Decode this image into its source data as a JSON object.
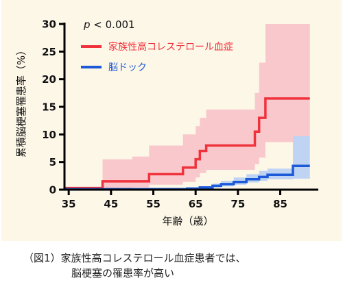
{
  "chart_data": {
    "type": "line",
    "step": true,
    "annotation": {
      "p_italic": "p",
      "p_rest": " < 0.001"
    },
    "xlabel": "年齢（歳）",
    "ylabel": "累積脳梗塞罹患率（%）",
    "xlim": [
      34,
      94
    ],
    "ylim": [
      0,
      30
    ],
    "xticks": [
      35,
      45,
      55,
      65,
      75,
      85
    ],
    "yticks": [
      0,
      5,
      10,
      15,
      20,
      25,
      30
    ],
    "legend_position": "top-left",
    "series": [
      {
        "name": "家族性高コレステロール血症",
        "color": "#f0323c",
        "band_color": "#f9c8cc",
        "x": [
          34,
          42,
          43,
          50,
          54,
          62,
          65,
          66,
          67.5,
          78,
          79,
          80,
          81.5,
          92
        ],
        "y": [
          0.3,
          0.3,
          1.5,
          1.5,
          2.8,
          4.0,
          5.5,
          7.0,
          8.0,
          8.0,
          10.5,
          13.0,
          16.5,
          16.5
        ],
        "lower": [
          0,
          0,
          0.3,
          0.4,
          0.9,
          1.4,
          2.2,
          3.0,
          3.6,
          3.6,
          4.6,
          5.8,
          8.6,
          8.6
        ],
        "upper": [
          0.5,
          0.5,
          5.5,
          6.0,
          8.0,
          10.0,
          11.5,
          13.0,
          14.5,
          14.5,
          17.5,
          23.0,
          30.0,
          30.0
        ]
      },
      {
        "name": "脳ドック",
        "color": "#1d5ad8",
        "band_color": "#bfd4f2",
        "x": [
          34,
          57,
          63,
          66,
          69,
          71,
          74,
          77,
          80,
          82,
          88,
          92
        ],
        "y": [
          0.1,
          0.1,
          0.2,
          0.4,
          0.7,
          1.0,
          1.4,
          1.9,
          2.3,
          2.7,
          4.3,
          4.3
        ],
        "lower": [
          0,
          0,
          0.1,
          0.2,
          0.4,
          0.6,
          0.9,
          1.3,
          1.6,
          1.9,
          2.0,
          2.0
        ],
        "upper": [
          0.2,
          0.2,
          0.4,
          0.6,
          1.1,
          1.6,
          2.2,
          2.8,
          3.4,
          3.8,
          9.7,
          9.7
        ]
      }
    ]
  },
  "caption": {
    "line1": "（図1）家族性高コレステロール血症患者では、",
    "line2": "脳梗塞の罹患率が高い"
  }
}
